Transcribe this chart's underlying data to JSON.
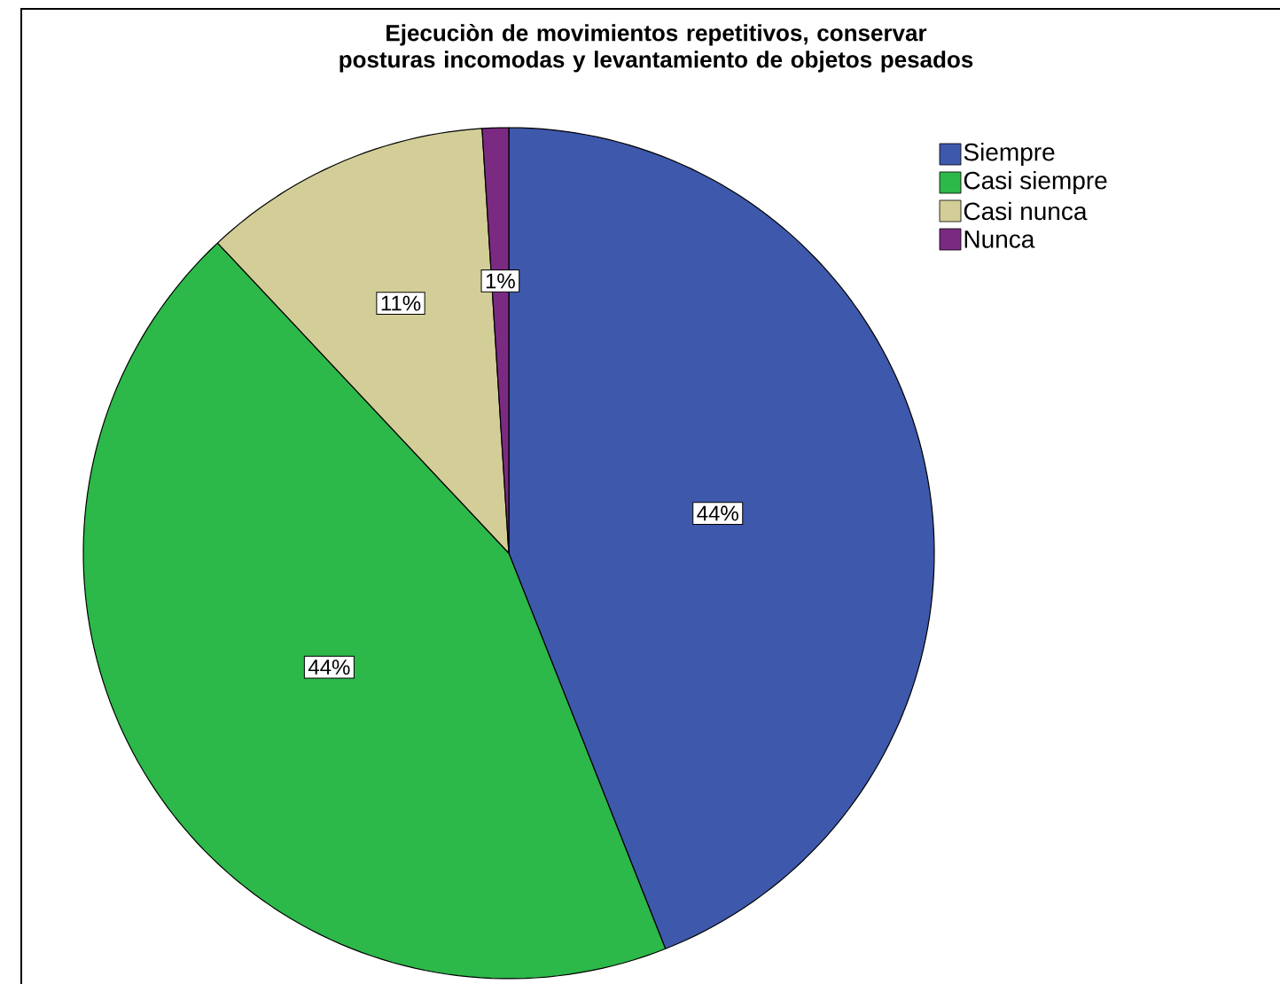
{
  "chart_data": {
    "type": "pie",
    "title": "Ejecuciòn de movimientos repetitivos, conservar posturas incomodas y levantamiento de objetos pesados",
    "categories": [
      "Siempre",
      "Casi siempre",
      "Casi nunca",
      "Nunca"
    ],
    "values": [
      44,
      44,
      11,
      1
    ],
    "value_labels": [
      "44%",
      "44%",
      "11%",
      "1%"
    ],
    "colors": [
      "#3e58ac",
      "#2db84a",
      "#d3ce97",
      "#7b2a82"
    ],
    "legend": "top right"
  }
}
